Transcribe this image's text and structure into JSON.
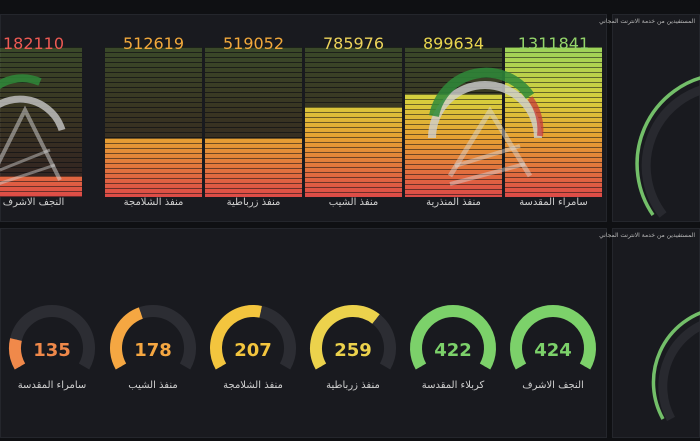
{
  "top_bars": [
    {
      "label": "النجف الاشرف",
      "value": "182110",
      "ratio": 0.14,
      "color": "#ee5a53"
    },
    {
      "label": "منفذ الشلامجة",
      "value": "512619",
      "ratio": 0.39,
      "color": "#f2a93b"
    },
    {
      "label": "منفذ زرباطية",
      "value": "519052",
      "ratio": 0.39,
      "color": "#f2a93b"
    },
    {
      "label": "منفذ الشيب",
      "value": "785976",
      "ratio": 0.6,
      "color": "#ecd35a"
    },
    {
      "label": "منفذ المنذرية",
      "value": "899634",
      "ratio": 0.69,
      "color": "#e7d54e"
    },
    {
      "label": "سامراء المقدسة",
      "value": "1311841",
      "ratio": 1.0,
      "color": "#93d46a"
    }
  ],
  "gauges": [
    {
      "label": "سامراء المقدسة",
      "value": "135",
      "fraction": 0.18,
      "color": "#f0894a"
    },
    {
      "label": "منفذ الشيب",
      "value": "178",
      "fraction": 0.42,
      "color": "#f5a742"
    },
    {
      "label": "منفذ الشلامجة",
      "value": "207",
      "fraction": 0.55,
      "color": "#f3c53e"
    },
    {
      "label": "منفذ زرباطية",
      "value": "259",
      "fraction": 0.66,
      "color": "#ecd24c"
    },
    {
      "label": "كربلاء المقدسة",
      "value": "422",
      "fraction": 1.0,
      "color": "#7cd16a"
    },
    {
      "label": "النجف الاشرف",
      "value": "424",
      "fraction": 1.0,
      "color": "#7cd16a"
    }
  ],
  "side_panels": {
    "top_title": "المستفيدين من خدمة الانترنت المجاني",
    "bottom_title": "المستفيدين من خدمة الانترنت المجاني"
  },
  "colors": {
    "track": "#2c2d33",
    "green": "#73bf69"
  }
}
